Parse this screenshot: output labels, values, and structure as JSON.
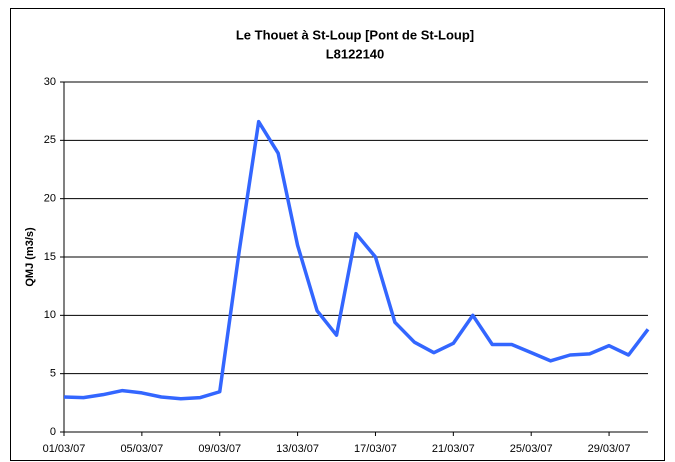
{
  "chart_data": {
    "type": "line",
    "title": "Le Thouet à St-Loup [Pont de St-Loup]",
    "subtitle": "L8122140",
    "y_label": "QMJ (m3/s)",
    "categories": [
      "01/03/07",
      null,
      null,
      null,
      "05/03/07",
      null,
      null,
      null,
      "09/03/07",
      null,
      null,
      null,
      "13/03/07",
      null,
      null,
      null,
      "17/03/07",
      null,
      null,
      null,
      "21/03/07",
      null,
      null,
      null,
      "25/03/07",
      null,
      null,
      null,
      "29/03/07",
      null,
      null
    ],
    "series": [
      {
        "name": "QMJ",
        "color": "#3366ff",
        "values": [
          3.0,
          2.95,
          3.2,
          3.55,
          3.35,
          3.0,
          2.85,
          2.95,
          3.45,
          15.5,
          26.6,
          23.9,
          16.0,
          10.4,
          8.3,
          17.0,
          15.0,
          9.4,
          7.7,
          6.8,
          7.6,
          10.0,
          7.5,
          7.5,
          6.8,
          6.1,
          6.6,
          6.7,
          7.4,
          6.6,
          8.8
        ]
      }
    ],
    "ylim": [
      0,
      30
    ],
    "yticks": [
      0,
      5,
      10,
      15,
      20,
      25,
      30
    ],
    "grid": true
  }
}
